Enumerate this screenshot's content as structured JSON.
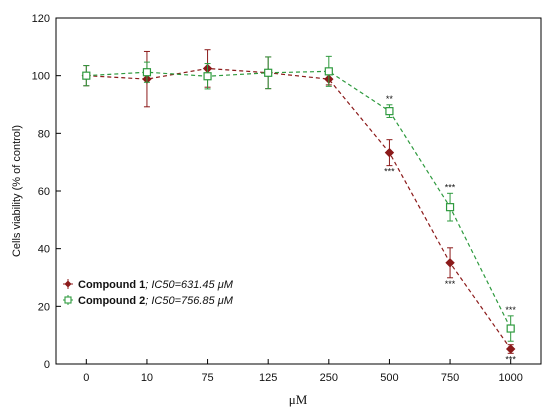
{
  "chart_data": {
    "type": "line",
    "xlabel": "μM",
    "ylabel": "Cells viability (% of control)",
    "categories": [
      "0",
      "10",
      "75",
      "125",
      "250",
      "500",
      "750",
      "1000"
    ],
    "ylim": [
      0,
      120
    ],
    "yticks": [
      0,
      20,
      40,
      60,
      80,
      100,
      120
    ],
    "grid": false,
    "legend_position": "bottom-left",
    "series": [
      {
        "name": "Compound 1; IC50=631.45 μM",
        "label_bold": "Compound 1",
        "label_rest": "; IC50=631.45 μM",
        "color": "#8b1a1a",
        "marker": "diamond-filled",
        "values": [
          100,
          98.8,
          102.5,
          101,
          98.8,
          73.3,
          35.1,
          5.2
        ],
        "errors": [
          3.5,
          9.6,
          6.5,
          5.5,
          2.0,
          4.5,
          5.2,
          1.5
        ],
        "significance": [
          "",
          "",
          "",
          "",
          "",
          "***",
          "***",
          "***"
        ]
      },
      {
        "name": "Compound 2; IC50=756.85 μM",
        "label_bold": "Compound 2",
        "label_rest": "; IC50=756.85 μM",
        "color": "#2e9a3e",
        "marker": "square-open",
        "values": [
          100,
          101.2,
          99.8,
          101,
          101.5,
          87.7,
          54.4,
          12.3
        ],
        "errors": [
          3.5,
          3.5,
          4.4,
          5.5,
          5.2,
          2.2,
          4.8,
          4.4
        ],
        "significance": [
          "",
          "",
          "",
          "",
          "",
          "**",
          "***",
          "***"
        ]
      }
    ]
  }
}
